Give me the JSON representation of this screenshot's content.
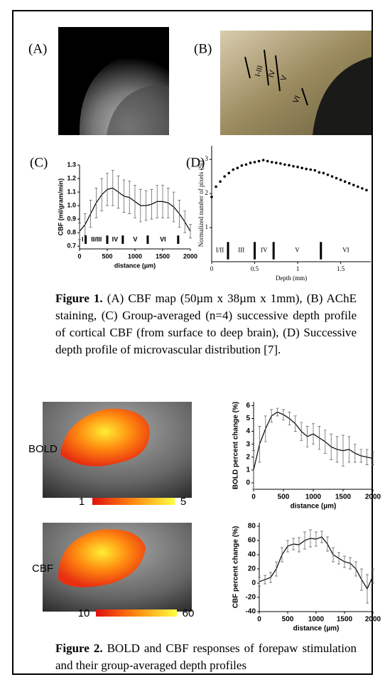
{
  "panel_labels": [
    "(A)",
    "(B)",
    "(C)",
    "(D)"
  ],
  "histology_labels": [
    "I-III",
    "IV",
    "V",
    "VI"
  ],
  "figure1_caption": {
    "label": "Figure 1.",
    "text": "(A) CBF map (50µm x 38µm x 1mm), (B) AChE staining, (C) Group-averaged (n=4) successive depth profile of cortical CBF (from surface to deep brain), (D) Successive depth profile of microvascular distribution [7]."
  },
  "figure2_maps": [
    {
      "label": "BOLD",
      "colorbar": [
        1,
        5
      ]
    },
    {
      "label": "CBF",
      "colorbar": [
        10,
        60
      ]
    }
  ],
  "figure2_caption": {
    "label": "Figure 2.",
    "text": "BOLD and CBF responses of forepaw stimulation and their group-averaged depth profiles"
  },
  "chart_data": [
    {
      "type": "line",
      "color": "#000000",
      "x": [
        0,
        100,
        200,
        300,
        400,
        500,
        600,
        700,
        800,
        900,
        1000,
        1100,
        1200,
        1300,
        1400,
        1500,
        1600,
        1700,
        1800,
        1900,
        2000
      ],
      "values": [
        0.81,
        0.86,
        0.94,
        1.02,
        1.08,
        1.12,
        1.13,
        1.1,
        1.07,
        1.06,
        1.03,
        1.0,
        1.0,
        1.01,
        1.03,
        1.03,
        1.02,
        0.99,
        0.94,
        0.88,
        0.81
      ],
      "errors": [
        0.06,
        0.08,
        0.1,
        0.11,
        0.12,
        0.12,
        0.13,
        0.12,
        0.12,
        0.12,
        0.12,
        0.12,
        0.11,
        0.11,
        0.12,
        0.12,
        0.11,
        0.11,
        0.1,
        0.08,
        0.05
      ],
      "xlim": [
        0,
        2000
      ],
      "ylim": [
        0.68,
        1.3
      ],
      "xticks": [
        0,
        500,
        1000,
        1500,
        2000
      ],
      "yticks": [
        0.7,
        0.8,
        0.9,
        {
          "value": 1,
          "label": "1.0"
        },
        1.1,
        1.2,
        1.3
      ],
      "x_label": "distance (µm)",
      "y_label": "CBF (ml/gram/min)",
      "layers": {
        "labels": [
          "I",
          "II/III",
          "IV",
          "V",
          "VI"
        ],
        "boundaries": [
          110,
          500,
          780,
          1230,
          1780
        ]
      }
    },
    {
      "type": "scatter",
      "color": "#000000",
      "x": [
        0,
        0.05,
        0.1,
        0.15,
        0.2,
        0.25,
        0.3,
        0.35,
        0.4,
        0.45,
        0.5,
        0.55,
        0.6,
        0.65,
        0.7,
        0.75,
        0.8,
        0.85,
        0.9,
        0.95,
        1,
        1.05,
        1.1,
        1.15,
        1.2,
        1.25,
        1.3,
        1.35,
        1.4,
        1.45,
        1.5,
        1.55,
        1.6,
        1.65,
        1.7,
        1.75,
        1.8
      ],
      "values": [
        1.9,
        2.2,
        2.35,
        2.5,
        2.6,
        2.7,
        2.75,
        2.82,
        2.85,
        2.9,
        2.92,
        2.95,
        2.98,
        2.95,
        2.92,
        2.9,
        2.88,
        2.85,
        2.83,
        2.8,
        2.78,
        2.75,
        2.72,
        2.7,
        2.68,
        2.62,
        2.6,
        2.55,
        2.5,
        2.45,
        2.4,
        2.35,
        2.3,
        2.25,
        2.2,
        2.15,
        2.1
      ],
      "xlim": [
        0,
        1.85
      ],
      "ylim": [
        0,
        3.4
      ],
      "xticks": [
        0,
        0.5,
        1,
        1.5
      ],
      "yticks": [
        1,
        2,
        3
      ],
      "x_label": "Depth (mm)",
      "y_label": "Normalized number of pixels (%)",
      "layers": {
        "labels": [
          "I/II",
          "III",
          "IV",
          "V",
          "VI"
        ],
        "boundaries": [
          0.19,
          0.5,
          0.72,
          1.27
        ]
      }
    },
    {
      "type": "line",
      "color": "#000000",
      "x": [
        0,
        100,
        200,
        300,
        400,
        500,
        600,
        700,
        800,
        900,
        1000,
        1100,
        1200,
        1300,
        1400,
        1500,
        1600,
        1700,
        1800,
        1900,
        2000
      ],
      "values": [
        1.0,
        3.0,
        4.2,
        5.2,
        5.5,
        5.3,
        5.0,
        4.6,
        4.0,
        3.6,
        3.8,
        3.5,
        3.2,
        2.8,
        2.6,
        2.5,
        2.6,
        2.3,
        2.1,
        2.0,
        1.9
      ],
      "errors": [
        1.5,
        1.4,
        1.0,
        0.5,
        0.3,
        0.4,
        0.5,
        0.6,
        0.7,
        0.8,
        0.8,
        0.9,
        0.9,
        1.0,
        1.0,
        1.2,
        1.0,
        0.7,
        0.5,
        0.6,
        0.5
      ],
      "xlim": [
        0,
        2000
      ],
      "ylim": [
        -0.5,
        6.3
      ],
      "xticks": [
        0,
        500,
        1000,
        1500,
        2000
      ],
      "yticks": [
        0,
        1,
        2,
        3,
        4,
        5,
        6
      ],
      "x_label": "distance (µm)",
      "y_label": "BOLD percent change (%)"
    },
    {
      "type": "line",
      "color": "#000000",
      "x": [
        0,
        100,
        200,
        300,
        400,
        500,
        600,
        700,
        800,
        900,
        1000,
        1100,
        1200,
        1300,
        1400,
        1500,
        1600,
        1700,
        1800,
        1900,
        2000
      ],
      "values": [
        2,
        5,
        8,
        20,
        40,
        52,
        55,
        54,
        60,
        63,
        62,
        65,
        55,
        40,
        35,
        30,
        28,
        20,
        5,
        -8,
        10
      ],
      "errors": [
        6,
        6,
        7,
        10,
        10,
        8,
        8,
        10,
        12,
        12,
        10,
        8,
        10,
        10,
        8,
        8,
        8,
        10,
        15,
        20,
        10
      ],
      "xlim": [
        0,
        2000
      ],
      "ylim": [
        -40,
        85
      ],
      "xticks": [
        0,
        500,
        1000,
        1500,
        2000
      ],
      "yticks": [
        -40,
        -20,
        0,
        20,
        40,
        60,
        80
      ],
      "x_label": "distance (µm)",
      "y_label": "CBF percent change (%)"
    }
  ]
}
